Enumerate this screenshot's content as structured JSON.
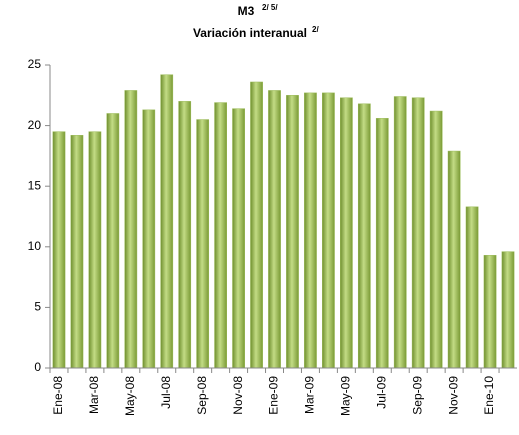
{
  "chart_data": {
    "type": "bar",
    "title": "M3",
    "title_note": "2/ 5/",
    "subtitle": "Variación interanual",
    "subtitle_note": "2/",
    "categories": [
      "Ene-08",
      null,
      "Mar-08",
      null,
      "May-08",
      null,
      "Jul-08",
      null,
      "Sep-08",
      null,
      "Nov-08",
      null,
      "Ene-09",
      null,
      "Mar-09",
      null,
      "May-09",
      null,
      "Jul-09",
      null,
      "Sep-09",
      null,
      "Nov-09",
      null,
      "Ene-10",
      null
    ],
    "values": [
      19.5,
      19.2,
      19.5,
      21.0,
      22.9,
      21.3,
      24.2,
      22.0,
      20.5,
      21.9,
      21.4,
      23.6,
      22.9,
      22.5,
      22.7,
      22.7,
      22.3,
      21.8,
      20.6,
      22.4,
      22.3,
      21.2,
      17.9,
      13.3,
      9.3,
      9.6
    ],
    "color": "#9bbb59",
    "ylim": [
      0,
      25
    ],
    "yticks": [
      0,
      5,
      10,
      15,
      20,
      25
    ],
    "grid": false
  }
}
